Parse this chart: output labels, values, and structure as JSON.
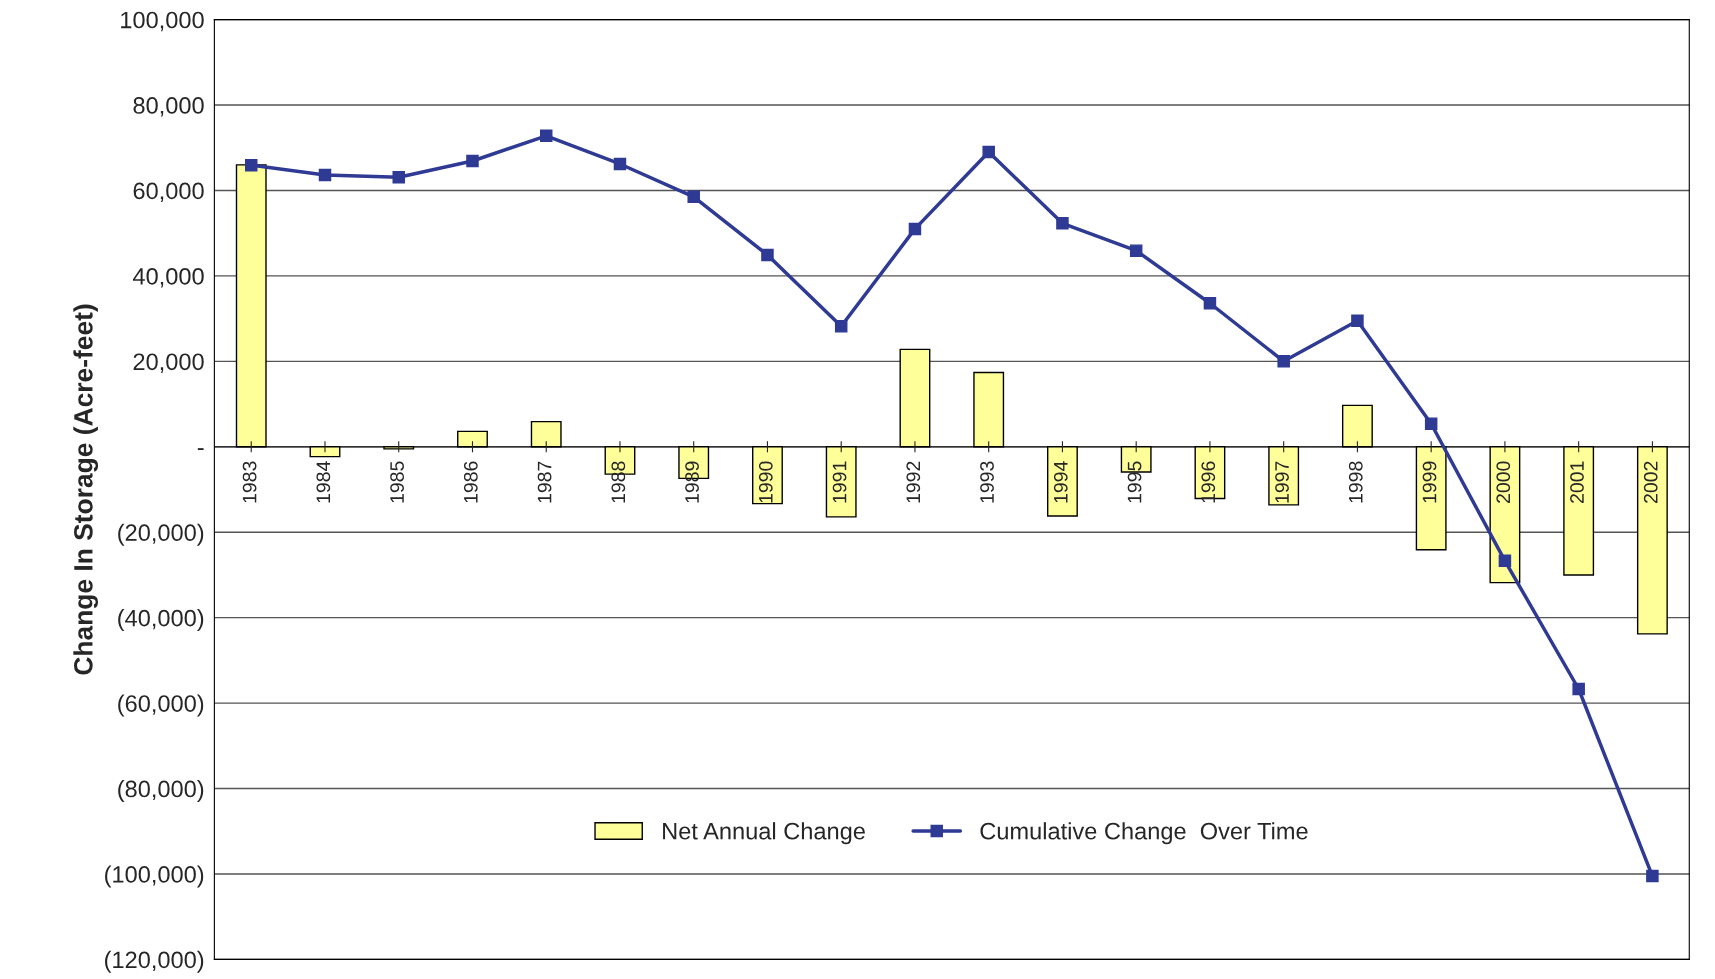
{
  "chart_data": {
    "type": "bar",
    "ylabel": "Change In Storage (Acre-feet)",
    "categories": [
      "1983",
      "1984",
      "1985",
      "1986",
      "1987",
      "1988",
      "1989",
      "1990",
      "1991",
      "1992",
      "1993",
      "1994",
      "1995",
      "1996",
      "1997",
      "1998",
      "1999",
      "2000",
      "2001",
      "2002"
    ],
    "series": [
      {
        "name": "Net Annual Change",
        "type": "bar",
        "color": "#ffff99",
        "values": [
          66000,
          -2300,
          -500,
          3600,
          5900,
          -6400,
          -7400,
          -13300,
          -16400,
          22800,
          17400,
          -16200,
          -5900,
          -12100,
          -13600,
          9700,
          -24100,
          -31800,
          -30000,
          -43800
        ]
      },
      {
        "name": "Cumulative Change  Over Time",
        "type": "line",
        "color": "#2e3a94",
        "marker": "square",
        "line_style": "solid",
        "values": [
          65900,
          63600,
          63100,
          66900,
          72800,
          66200,
          58500,
          44900,
          28200,
          51000,
          69000,
          52300,
          45900,
          33600,
          20000,
          29500,
          5400,
          -26700,
          -56700,
          -100500
        ]
      }
    ],
    "ylim": [
      -120000,
      100000
    ],
    "yticks": [
      {
        "value": -120000,
        "label": "(120,000)"
      },
      {
        "value": -100000,
        "label": "(100,000)"
      },
      {
        "value": -80000,
        "label": "(80,000)"
      },
      {
        "value": -60000,
        "label": "(60,000)"
      },
      {
        "value": -40000,
        "label": "(40,000)"
      },
      {
        "value": -20000,
        "label": "(20,000)"
      },
      {
        "value": 0,
        "label": "-"
      },
      {
        "value": 20000,
        "label": "20,000"
      },
      {
        "value": 40000,
        "label": "40,000"
      },
      {
        "value": 60000,
        "label": "60,000"
      },
      {
        "value": 80000,
        "label": "80,000"
      },
      {
        "value": 100000,
        "label": "100,000"
      }
    ],
    "grid": "y",
    "legend": "bottom"
  }
}
